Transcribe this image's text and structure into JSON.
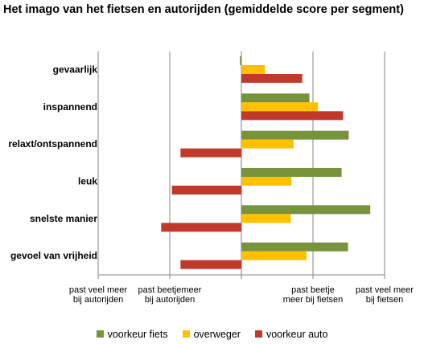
{
  "chart_data": {
    "type": "bar",
    "orientation": "horizontal",
    "title": "Het imago van het fietsen en autorijden (gemiddelde score per segment)",
    "categories": [
      "gevaarlijk",
      "inspannend",
      "relaxt/ontspannend",
      "leuk",
      "snelste manier",
      "gevoel van vrijheid"
    ],
    "series": [
      {
        "name": "voorkeur fiets",
        "color": "#77933c",
        "values": [
          -0.02,
          0.95,
          1.5,
          1.4,
          1.8,
          1.49
        ]
      },
      {
        "name": "overweger",
        "color": "#ffc000",
        "values": [
          0.33,
          1.07,
          0.73,
          0.7,
          0.69,
          0.91
        ]
      },
      {
        "name": "voorkeur auto",
        "color": "#c0392b",
        "values": [
          0.85,
          1.42,
          -0.85,
          -0.97,
          -1.12,
          -0.85
        ]
      }
    ],
    "xlim": [
      -2,
      2
    ],
    "xticks": [
      -2,
      -1,
      0,
      1,
      2
    ],
    "xtick_labels": [
      [
        "past veel meer",
        "bij autorijden"
      ],
      [
        "past beetjemeer",
        "bij autorijden"
      ],
      [
        "",
        ""
      ],
      [
        "past beetje",
        "meer bij fietsen"
      ],
      [
        "past veel meer",
        "bij fietsen"
      ]
    ],
    "grid": true,
    "legend_position": "bottom"
  }
}
